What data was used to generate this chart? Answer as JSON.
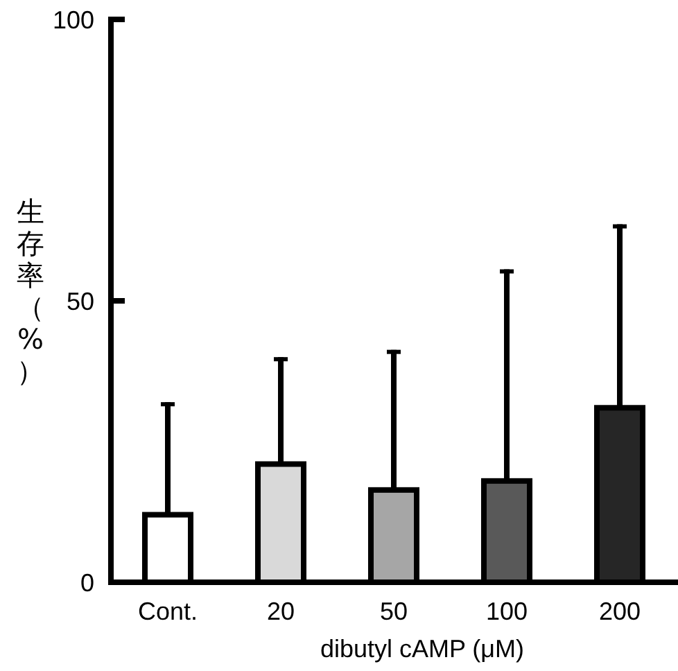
{
  "chart_data": {
    "type": "bar",
    "categories": [
      "Cont.",
      "20",
      "50",
      "100",
      "200"
    ],
    "values": [
      12,
      21,
      16.4,
      18,
      31
    ],
    "colors": [
      "#ffffff",
      "#d9d9d9",
      "#a6a6a6",
      "#595959",
      "#262626"
    ],
    "errors": [
      [
        12,
        32
      ],
      [
        21,
        40
      ],
      [
        16.4,
        41.3
      ],
      [
        18,
        55.6
      ],
      [
        31,
        63.6
      ]
    ],
    "ylim": [
      0,
      100
    ],
    "yticks": [
      0,
      50,
      100
    ],
    "xlabel": "dibutyl cAMP (μM)",
    "ylabel": "生存率（%）"
  }
}
